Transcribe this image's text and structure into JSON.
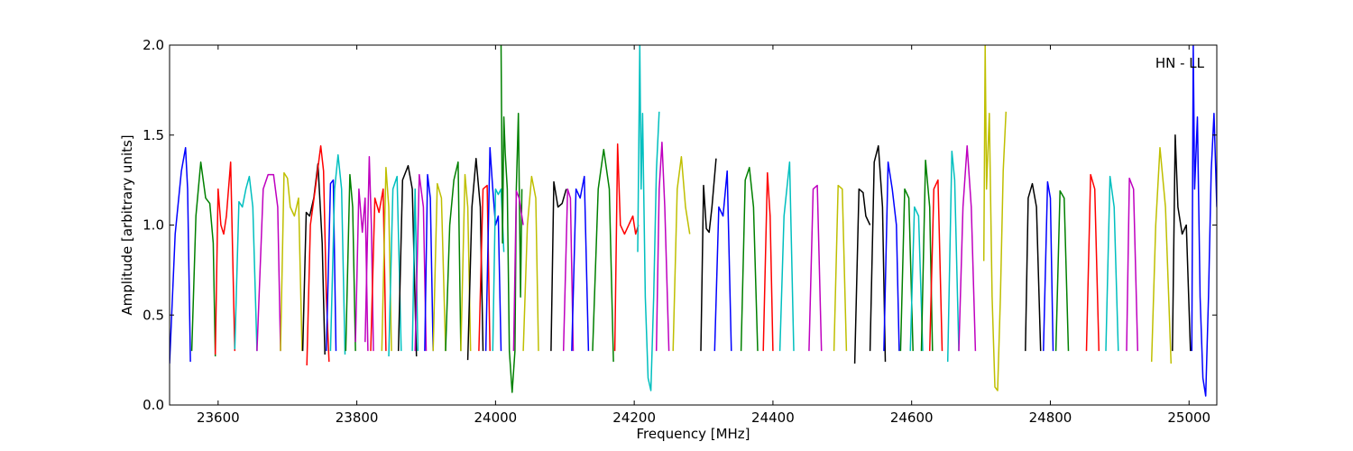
{
  "chart_data": {
    "type": "line",
    "annotation": "HN - LL",
    "xlabel": "Frequency [MHz]",
    "ylabel": "Amplitude [arbitrary units]",
    "xlim": [
      23530,
      25040
    ],
    "ylim": [
      0.0,
      2.0
    ],
    "xticks": [
      23600,
      23800,
      24000,
      24200,
      24400,
      24600,
      24800,
      25000
    ],
    "yticks": [
      0.0,
      0.5,
      1.0,
      1.5,
      2.0
    ],
    "ytick_labels": [
      "0.0",
      "0.5",
      "1.0",
      "1.5",
      "2.0"
    ],
    "grid": false,
    "legend": "none",
    "colors": [
      "#0000ff",
      "#008000",
      "#ff0000",
      "#00bfbf",
      "#bf00bf",
      "#bfbf00",
      "#000000"
    ],
    "series": [
      {
        "color": "#0000ff",
        "x": [
          23530,
          23538,
          23547,
          23553,
          23556,
          23560
        ],
        "y": [
          0.23,
          0.95,
          1.3,
          1.43,
          1.2,
          0.24
        ]
      },
      {
        "color": "#008000",
        "x": [
          23562,
          23568,
          23575,
          23582,
          23588,
          23593,
          23596
        ],
        "y": [
          0.3,
          1.05,
          1.35,
          1.15,
          1.12,
          0.9,
          0.27
        ]
      },
      {
        "color": "#ff0000",
        "x": [
          23596,
          23600,
          23604,
          23608,
          23612,
          23618,
          23624
        ],
        "y": [
          0.28,
          1.2,
          1.0,
          0.95,
          1.05,
          1.35,
          0.3
        ]
      },
      {
        "color": "#00bfbf",
        "x": [
          23624,
          23630,
          23635,
          23640,
          23645,
          23650,
          23656
        ],
        "y": [
          0.31,
          1.13,
          1.1,
          1.2,
          1.27,
          1.1,
          0.3
        ]
      },
      {
        "color": "#bf00bf",
        "x": [
          23656,
          23665,
          23672,
          23680,
          23686,
          23690
        ],
        "y": [
          0.3,
          1.2,
          1.28,
          1.28,
          1.1,
          0.3
        ]
      },
      {
        "color": "#bfbf00",
        "x": [
          23690,
          23695,
          23700,
          23704,
          23710,
          23716,
          23721
        ],
        "y": [
          0.3,
          1.29,
          1.26,
          1.1,
          1.05,
          1.15,
          0.3
        ]
      },
      {
        "color": "#000000",
        "x": [
          23722,
          23727,
          23732,
          23738,
          23744,
          23750,
          23754
        ],
        "y": [
          0.3,
          1.07,
          1.05,
          1.15,
          1.34,
          0.9,
          0.28
        ]
      },
      {
        "color": "#ff0000",
        "x": [
          23728,
          23733,
          23740,
          23748,
          23752,
          23756,
          23760
        ],
        "y": [
          0.22,
          1.0,
          1.2,
          1.44,
          1.3,
          0.6,
          0.24
        ]
      },
      {
        "color": "#0000ff",
        "x": [
          23756,
          23762,
          23766,
          23770
        ],
        "y": [
          0.3,
          1.23,
          1.25,
          0.3
        ]
      },
      {
        "color": "#00bfbf",
        "x": [
          23762,
          23768,
          23773,
          23778,
          23783
        ],
        "y": [
          0.3,
          1.2,
          1.39,
          1.2,
          0.28
        ]
      },
      {
        "color": "#008000",
        "x": [
          23784,
          23790,
          23794,
          23798
        ],
        "y": [
          0.3,
          1.28,
          1.1,
          0.3
        ]
      },
      {
        "color": "#bf00bf",
        "x": [
          23798,
          23803,
          23808,
          23812,
          23816
        ],
        "y": [
          0.35,
          1.2,
          0.96,
          1.15,
          0.3
        ]
      },
      {
        "color": "#bf00bf",
        "x": [
          23812,
          23818,
          23821,
          23824
        ],
        "y": [
          0.35,
          1.38,
          1.0,
          0.3
        ]
      },
      {
        "color": "#ff0000",
        "x": [
          23820,
          23826,
          23832,
          23838,
          23842
        ],
        "y": [
          0.3,
          1.15,
          1.07,
          1.2,
          0.3
        ]
      },
      {
        "color": "#bfbf00",
        "x": [
          23836,
          23842,
          23846,
          23850
        ],
        "y": [
          0.3,
          1.32,
          1.1,
          0.3
        ]
      },
      {
        "color": "#00bfbf",
        "x": [
          23846,
          23852,
          23858,
          23864
        ],
        "y": [
          0.27,
          1.2,
          1.27,
          0.3
        ]
      },
      {
        "color": "#000000",
        "x": [
          23860,
          23866,
          23874,
          23880,
          23886
        ],
        "y": [
          0.3,
          1.25,
          1.33,
          1.2,
          0.27
        ]
      },
      {
        "color": "#00bfbf",
        "x": [
          23880,
          23884,
          23888
        ],
        "y": [
          0.3,
          1.2,
          0.3
        ]
      },
      {
        "color": "#bf00bf",
        "x": [
          23884,
          23890,
          23896,
          23900
        ],
        "y": [
          0.3,
          1.28,
          1.1,
          0.3
        ]
      },
      {
        "color": "#0000ff",
        "x": [
          23898,
          23902,
          23906,
          23910
        ],
        "y": [
          0.3,
          1.28,
          1.15,
          0.3
        ]
      },
      {
        "color": "#bfbf00",
        "x": [
          23910,
          23916,
          23922,
          23928
        ],
        "y": [
          0.3,
          1.23,
          1.15,
          0.3
        ]
      },
      {
        "color": "#008000",
        "x": [
          23928,
          23934,
          23940,
          23946,
          23950
        ],
        "y": [
          0.3,
          1.0,
          1.25,
          1.35,
          0.3
        ]
      },
      {
        "color": "#bfbf00",
        "x": [
          23950,
          23956,
          23960,
          23964
        ],
        "y": [
          0.3,
          1.28,
          1.1,
          0.3
        ]
      },
      {
        "color": "#000000",
        "x": [
          23960,
          23966,
          23972,
          23978,
          23982
        ],
        "y": [
          0.25,
          1.1,
          1.37,
          1.1,
          0.3
        ]
      },
      {
        "color": "#ff0000",
        "x": [
          23976,
          23982,
          23988,
          23992
        ],
        "y": [
          0.3,
          1.2,
          1.22,
          0.3
        ]
      },
      {
        "color": "#0000ff",
        "x": [
          23986,
          23992,
          23996,
          24000,
          24004,
          24008
        ],
        "y": [
          0.3,
          1.43,
          1.2,
          1.0,
          1.05,
          0.3
        ]
      },
      {
        "color": "#00bfbf",
        "x": [
          23996,
          24000,
          24004,
          24008,
          24012
        ],
        "y": [
          0.3,
          1.2,
          1.17,
          1.2,
          0.85
        ]
      },
      {
        "color": "#008000",
        "x": [
          24008,
          24010,
          24012,
          24014,
          24017,
          24020,
          24024,
          24028,
          24030,
          24033,
          24036,
          24038
        ],
        "y": [
          2.0,
          0.9,
          1.6,
          1.4,
          1.2,
          0.3,
          0.07,
          0.3,
          1.2,
          1.62,
          0.6,
          1.2
        ]
      },
      {
        "color": "#bf00bf",
        "x": [
          24026,
          24030,
          24034,
          24040
        ],
        "y": [
          0.3,
          1.19,
          1.15,
          1.0
        ]
      },
      {
        "color": "#bfbf00",
        "x": [
          24040,
          24046,
          24052,
          24058,
          24062
        ],
        "y": [
          0.3,
          1.0,
          1.27,
          1.15,
          0.3
        ]
      },
      {
        "color": "#000000",
        "x": [
          24080,
          24084,
          24090,
          24096,
          24102
        ],
        "y": [
          0.3,
          1.24,
          1.1,
          1.12,
          1.2
        ]
      },
      {
        "color": "#bf00bf",
        "x": [
          24098,
          24104,
          24108,
          24112
        ],
        "y": [
          0.3,
          1.2,
          1.15,
          0.3
        ]
      },
      {
        "color": "#0000ff",
        "x": [
          24110,
          24116,
          24122,
          24128,
          24134
        ],
        "y": [
          0.3,
          1.2,
          1.15,
          1.27,
          0.3
        ]
      },
      {
        "color": "#008000",
        "x": [
          24140,
          24148,
          24156,
          24164,
          24170
        ],
        "y": [
          0.3,
          1.2,
          1.42,
          1.2,
          0.24
        ]
      },
      {
        "color": "#ff0000",
        "x": [
          24172,
          24176,
          24180,
          24186,
          24192
        ],
        "y": [
          0.3,
          1.45,
          1.0,
          0.95,
          1.0
        ]
      },
      {
        "color": "#ff0000",
        "x": [
          24192,
          24198,
          24202,
          24206
        ],
        "y": [
          1.0,
          1.05,
          0.95,
          1.0
        ]
      },
      {
        "color": "#00bfbf",
        "x": [
          24205,
          24208,
          24210,
          24212,
          24216,
          24220,
          24224,
          24228,
          24232,
          24236
        ],
        "y": [
          0.85,
          2.0,
          1.2,
          1.62,
          0.6,
          0.15,
          0.08,
          0.6,
          1.3,
          1.63
        ]
      },
      {
        "color": "#bf00bf",
        "x": [
          24232,
          24236,
          24240,
          24244,
          24250
        ],
        "y": [
          0.3,
          1.2,
          1.46,
          1.1,
          0.3
        ]
      },
      {
        "color": "#bfbf00",
        "x": [
          24256,
          24262,
          24268,
          24274,
          24280
        ],
        "y": [
          0.3,
          1.2,
          1.38,
          1.1,
          0.95
        ]
      },
      {
        "color": "#000000",
        "x": [
          24296,
          24300,
          24304,
          24308,
          24312,
          24318
        ],
        "y": [
          0.3,
          1.22,
          0.98,
          0.96,
          1.1,
          1.37
        ]
      },
      {
        "color": "#0000ff",
        "x": [
          24316,
          24322,
          24328,
          24334,
          24340
        ],
        "y": [
          0.3,
          1.1,
          1.05,
          1.3,
          0.3
        ]
      },
      {
        "color": "#008000",
        "x": [
          24354,
          24360,
          24366,
          24372,
          24378
        ],
        "y": [
          0.3,
          1.25,
          1.32,
          1.1,
          0.3
        ]
      },
      {
        "color": "#ff0000",
        "x": [
          24386,
          24392,
          24396,
          24400
        ],
        "y": [
          0.3,
          1.29,
          1.05,
          0.3
        ]
      },
      {
        "color": "#00bfbf",
        "x": [
          24410,
          24416,
          24424,
          24430
        ],
        "y": [
          0.3,
          1.05,
          1.35,
          0.3
        ]
      },
      {
        "color": "#bf00bf",
        "x": [
          24452,
          24458,
          24464,
          24470
        ],
        "y": [
          0.3,
          1.2,
          1.22,
          0.3
        ]
      },
      {
        "color": "#bfbf00",
        "x": [
          24488,
          24494,
          24500,
          24506
        ],
        "y": [
          0.3,
          1.22,
          1.2,
          0.3
        ]
      },
      {
        "color": "#000000",
        "x": [
          24518,
          24524,
          24530,
          24534,
          24540
        ],
        "y": [
          0.23,
          1.2,
          1.18,
          1.05,
          1.0
        ]
      },
      {
        "color": "#000000",
        "x": [
          24540,
          24546,
          24552,
          24558,
          24562
        ],
        "y": [
          0.3,
          1.35,
          1.44,
          1.1,
          0.24
        ]
      },
      {
        "color": "#0000ff",
        "x": [
          24560,
          24566,
          24572,
          24578,
          24582
        ],
        "y": [
          0.3,
          1.35,
          1.2,
          1.0,
          0.3
        ]
      },
      {
        "color": "#008000",
        "x": [
          24584,
          24590,
          24596,
          24602
        ],
        "y": [
          0.3,
          1.2,
          1.15,
          0.3
        ]
      },
      {
        "color": "#00bfbf",
        "x": [
          24598,
          24604,
          24610,
          24616
        ],
        "y": [
          0.3,
          1.1,
          1.05,
          0.3
        ]
      },
      {
        "color": "#008000",
        "x": [
          24614,
          24620,
          24626,
          24630
        ],
        "y": [
          0.3,
          1.36,
          1.1,
          0.3
        ]
      },
      {
        "color": "#ff0000",
        "x": [
          24626,
          24632,
          24638,
          24644
        ],
        "y": [
          0.3,
          1.2,
          1.25,
          0.3
        ]
      },
      {
        "color": "#00bfbf",
        "x": [
          24652,
          24658,
          24662,
          24668
        ],
        "y": [
          0.24,
          1.41,
          1.25,
          0.3
        ]
      },
      {
        "color": "#bf00bf",
        "x": [
          24668,
          24674,
          24680,
          24686,
          24692
        ],
        "y": [
          0.3,
          1.1,
          1.44,
          1.1,
          0.3
        ]
      },
      {
        "color": "#bfbf00",
        "x": [
          24704,
          24706,
          24708,
          24712,
          24716,
          24720,
          24724,
          24728,
          24732,
          24736
        ],
        "y": [
          0.8,
          2.0,
          1.2,
          1.62,
          0.6,
          0.1,
          0.08,
          0.6,
          1.3,
          1.63
        ]
      },
      {
        "color": "#000000",
        "x": [
          24764,
          24768,
          24774,
          24780,
          24786
        ],
        "y": [
          0.3,
          1.15,
          1.23,
          1.1,
          0.3
        ]
      },
      {
        "color": "#0000ff",
        "x": [
          24790,
          24796,
          24800,
          24804
        ],
        "y": [
          0.3,
          1.24,
          1.15,
          0.3
        ]
      },
      {
        "color": "#008000",
        "x": [
          24808,
          24814,
          24820,
          24826
        ],
        "y": [
          0.3,
          1.19,
          1.15,
          0.3
        ]
      },
      {
        "color": "#ff0000",
        "x": [
          24852,
          24858,
          24864,
          24870
        ],
        "y": [
          0.3,
          1.28,
          1.2,
          0.3
        ]
      },
      {
        "color": "#00bfbf",
        "x": [
          24880,
          24886,
          24892,
          24898
        ],
        "y": [
          0.3,
          1.27,
          1.1,
          0.3
        ]
      },
      {
        "color": "#bf00bf",
        "x": [
          24910,
          24914,
          24920,
          24926
        ],
        "y": [
          0.3,
          1.26,
          1.2,
          0.3
        ]
      },
      {
        "color": "#bfbf00",
        "x": [
          24946,
          24952,
          24958,
          24966,
          24974
        ],
        "y": [
          0.24,
          1.0,
          1.43,
          1.1,
          0.23
        ]
      },
      {
        "color": "#000000",
        "x": [
          24976,
          24980,
          24984,
          24990,
          24996,
          25002
        ],
        "y": [
          0.3,
          1.5,
          1.1,
          0.95,
          1.0,
          0.3
        ]
      },
      {
        "color": "#0000ff",
        "x": [
          25004,
          25006,
          25008,
          25012,
          25016,
          25020,
          25024,
          25028,
          25032,
          25036,
          25040
        ],
        "y": [
          0.3,
          2.0,
          1.2,
          1.6,
          0.6,
          0.15,
          0.05,
          0.6,
          1.3,
          1.62,
          1.1
        ]
      }
    ]
  }
}
